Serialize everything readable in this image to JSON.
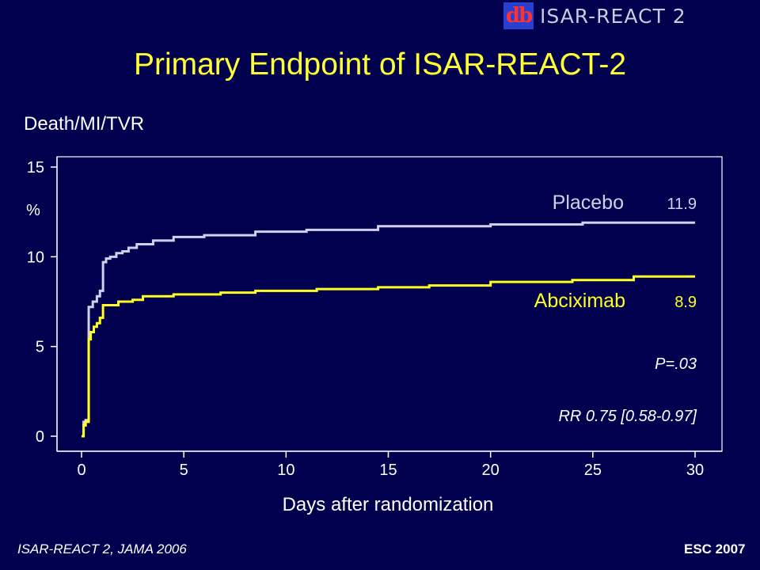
{
  "logo": {
    "mark_text": "db",
    "text": "ISAR-REACT 2"
  },
  "title": "Primary Endpoint of ISAR-REACT-2",
  "subtitle": "Death/MI/TVR",
  "footer": {
    "citation": "ISAR-REACT 2,  JAMA 2006",
    "event": "ESC 2007"
  },
  "colors": {
    "background": "#00004f",
    "title": "#ffff33",
    "placebo": "#d0d0ec",
    "abciximab": "#ffff22"
  },
  "chart_data": {
    "type": "line",
    "title": "",
    "xlabel": "Days after randomization",
    "ylabel": "%",
    "xlim": [
      0,
      30
    ],
    "ylim": [
      0,
      15
    ],
    "x_ticks": [
      0,
      5,
      10,
      15,
      20,
      25,
      30
    ],
    "y_ticks": [
      0,
      5,
      10,
      15
    ],
    "step": true,
    "series": [
      {
        "name": "Placebo",
        "end_label": "11.9",
        "color": "#d0d0ec",
        "x": [
          0,
          0.1,
          0.2,
          0.35,
          0.55,
          0.75,
          0.9,
          1.05,
          1.2,
          1.4,
          1.7,
          2.0,
          2.3,
          2.7,
          3.5,
          4.5,
          6.0,
          8.5,
          11.0,
          14.5,
          20.0,
          24.5,
          30.0
        ],
        "y": [
          0,
          0.8,
          0.9,
          7.2,
          7.5,
          7.8,
          8.1,
          9.7,
          9.9,
          10.0,
          10.2,
          10.3,
          10.5,
          10.7,
          10.9,
          11.1,
          11.2,
          11.4,
          11.5,
          11.7,
          11.8,
          11.9,
          11.9
        ]
      },
      {
        "name": "Abciximab",
        "end_label": "8.9",
        "color": "#ffff22",
        "x": [
          0,
          0.1,
          0.2,
          0.35,
          0.45,
          0.6,
          0.75,
          0.9,
          1.05,
          1.8,
          2.5,
          3.0,
          4.5,
          6.8,
          8.5,
          11.5,
          14.5,
          17.0,
          20.0,
          24.0,
          27.0,
          30.0
        ],
        "y": [
          0,
          0.6,
          0.8,
          5.4,
          5.8,
          6.1,
          6.3,
          6.6,
          7.3,
          7.5,
          7.6,
          7.8,
          7.9,
          8.0,
          8.1,
          8.2,
          8.3,
          8.4,
          8.6,
          8.7,
          8.9,
          8.9
        ]
      }
    ],
    "annotations": {
      "p_value": "P=.03",
      "rr": "RR 0.75 [0.58-0.97]"
    }
  }
}
